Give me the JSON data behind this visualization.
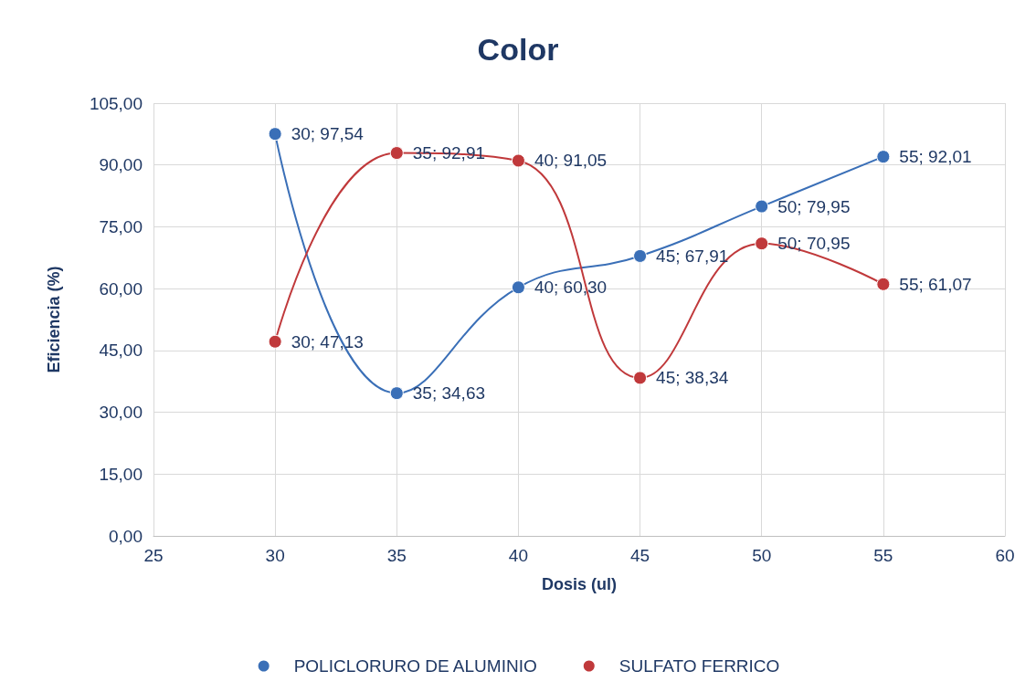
{
  "chart_data": {
    "type": "line",
    "title": "Color",
    "xlabel": "Dosis (ul)",
    "ylabel": "Eficiencia (%)",
    "x": [
      30,
      35,
      40,
      45,
      50,
      55
    ],
    "series": [
      {
        "name": "POLICLORURO DE ALUMINIO",
        "color": "#3a6fb7",
        "values": [
          97.54,
          34.63,
          60.3,
          67.91,
          79.95,
          92.01
        ],
        "value_labels": [
          "30; 97,54",
          "35; 34,63",
          "40; 60,30",
          "45; 67,91",
          "50; 79,95",
          "55; 92,01"
        ]
      },
      {
        "name": "SULFATO FERRICO",
        "color": "#c0393b",
        "values": [
          47.13,
          92.91,
          91.05,
          38.34,
          70.95,
          61.07
        ],
        "value_labels": [
          "30; 47,13",
          "35; 92,91",
          "40; 91,05",
          "45; 38,34",
          "50; 70,95",
          "55; 61,07"
        ]
      }
    ],
    "xlim": [
      25,
      60
    ],
    "xticks": [
      25,
      30,
      35,
      40,
      45,
      50,
      55,
      60
    ],
    "ylim": [
      0,
      105
    ],
    "yticks": [
      {
        "value": 0,
        "label": "0,00"
      },
      {
        "value": 15,
        "label": "15,00"
      },
      {
        "value": 30,
        "label": "30,00"
      },
      {
        "value": 45,
        "label": "45,00"
      },
      {
        "value": 60,
        "label": "60,00"
      },
      {
        "value": 75,
        "label": "75,00"
      },
      {
        "value": 90,
        "label": "90,00"
      },
      {
        "value": 105,
        "label": "105,00"
      }
    ],
    "grid": true,
    "legend": "bottom",
    "marker": "circle",
    "line_style": "solid"
  }
}
